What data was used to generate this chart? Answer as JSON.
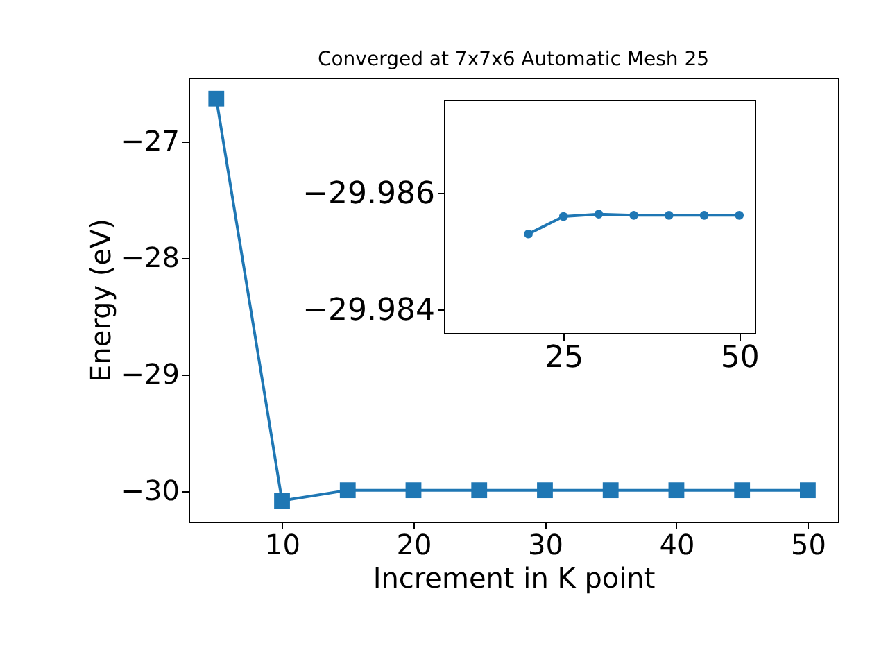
{
  "chart_data": [
    {
      "type": "line",
      "title": "Converged at 7x7x6 Automatic Mesh 25",
      "xlabel": "Increment in K point",
      "ylabel": "Energy (eV)",
      "x": [
        5,
        10,
        15,
        20,
        25,
        30,
        35,
        40,
        45,
        50
      ],
      "series": [
        {
          "color": "#1f77b4",
          "values": [
            -26.63,
            -30.08,
            -29.99,
            -29.99,
            -29.99,
            -29.99,
            -29.99,
            -29.99,
            -29.99,
            -29.99
          ]
        }
      ],
      "xlim": [
        2.9,
        52.3
      ],
      "xticks": [
        10,
        20,
        30,
        40,
        50
      ],
      "ylim": [
        -30.26,
        -26.45
      ],
      "yticks": [
        {
          "value": -30,
          "label": "−30"
        },
        {
          "value": -29,
          "label": "−29"
        },
        {
          "value": -28,
          "label": "−28"
        },
        {
          "value": -27,
          "label": "−27"
        }
      ],
      "marker": "square",
      "grid": false
    },
    {
      "type": "line",
      "x": [
        20,
        25,
        30,
        35,
        40,
        45,
        50
      ],
      "series": [
        {
          "color": "#1f77b4",
          "values": [
            -29.9853,
            -29.9856,
            -29.98564,
            -29.98562,
            -29.98562,
            -29.98562,
            -29.98562
          ]
        }
      ],
      "xlim": [
        8,
        52.2
      ],
      "xticks": [
        25,
        50
      ],
      "ylim": [
        -29.9836,
        -29.9876
      ],
      "yticks": [
        {
          "value": -29.986,
          "label": "−29.986"
        },
        {
          "value": -29.984,
          "label": "−29.984"
        }
      ],
      "marker": "circle",
      "grid": false
    }
  ]
}
